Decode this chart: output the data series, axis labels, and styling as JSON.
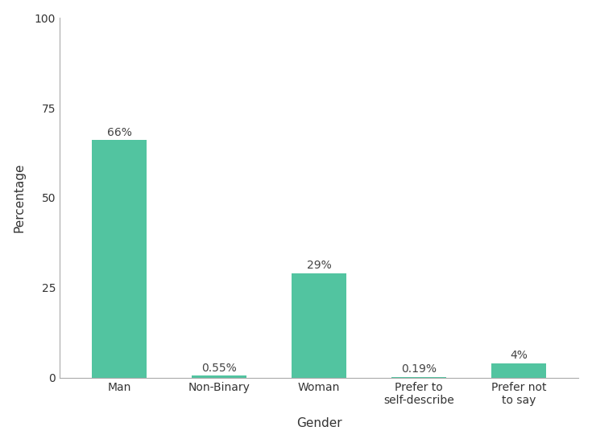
{
  "categories": [
    "Man",
    "Non-Binary",
    "Woman",
    "Prefer to\nself-describe",
    "Prefer not\nto say"
  ],
  "values": [
    66,
    0.55,
    29,
    0.19,
    4
  ],
  "labels": [
    "66%",
    "0.55%",
    "29%",
    "0.19%",
    "4%"
  ],
  "bar_color": "#52c4a0",
  "xlabel": "Gender",
  "ylabel": "Percentage",
  "ylim": [
    0,
    100
  ],
  "yticks": [
    0,
    25,
    50,
    75,
    100
  ],
  "background_color": "#ffffff",
  "label_fontsize": 10,
  "axis_label_fontsize": 11,
  "tick_fontsize": 10,
  "bar_width": 0.55
}
